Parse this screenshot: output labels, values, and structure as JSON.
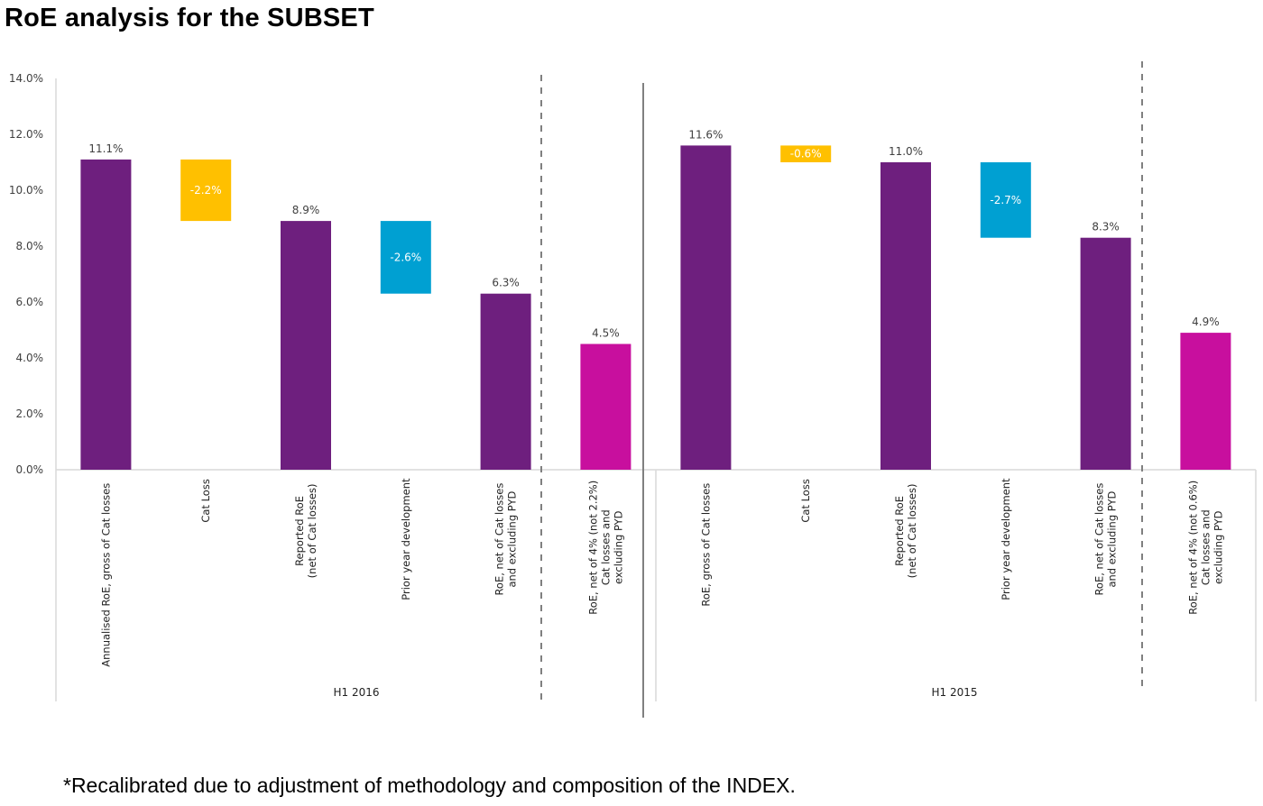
{
  "title": "RoE analysis for the SUBSET",
  "footnote": "*Recalibrated due to adjustment of methodology and composition of the INDEX.",
  "colors": {
    "total": "#6E1F7E",
    "cat_loss": "#FFC000",
    "pyd": "#00A0D2",
    "adjusted": "#C80F9E",
    "axis": "#D9D9D9",
    "tick_label": "#404040",
    "separator": "#808080"
  },
  "chart_data": {
    "type": "bar",
    "subtype": "waterfall",
    "title": "RoE analysis for the SUBSET",
    "xlabel": "",
    "ylabel": "",
    "ylim": [
      0,
      14
    ],
    "yticks": [
      "0.0%",
      "2.0%",
      "4.0%",
      "6.0%",
      "8.0%",
      "10.0%",
      "12.0%",
      "14.0%"
    ],
    "ytick_values": [
      0,
      2,
      4,
      6,
      8,
      10,
      12,
      14
    ],
    "grid": false,
    "legend": "none",
    "groups": [
      {
        "label": "H1 2016",
        "bars": [
          {
            "category": "Annualised RoE, gross of Cat losses",
            "kind": "total",
            "start": 0,
            "end": 11.1,
            "label": "11.1%"
          },
          {
            "category": "Cat Loss",
            "kind": "cat_loss",
            "start": 11.1,
            "end": 8.9,
            "label": "-2.2%"
          },
          {
            "category": "Reported RoE\n(net of Cat losses)",
            "kind": "total",
            "start": 0,
            "end": 8.9,
            "label": "8.9%"
          },
          {
            "category": "Prior year development",
            "kind": "pyd",
            "start": 8.9,
            "end": 6.3,
            "label": "-2.6%"
          },
          {
            "category": "RoE, net of Cat losses\nand excluding PYD",
            "kind": "total",
            "start": 0,
            "end": 6.3,
            "label": "6.3%"
          },
          {
            "category": "RoE, net of 4% (not 2.2%)\nCat losses and\nexcluding PYD",
            "kind": "adjusted",
            "start": 0,
            "end": 4.5,
            "label": "4.5%"
          }
        ]
      },
      {
        "label": "H1 2015",
        "bars": [
          {
            "category": "RoE, gross of Cat losses",
            "kind": "total",
            "start": 0,
            "end": 11.6,
            "label": "11.6%"
          },
          {
            "category": "Cat Loss",
            "kind": "cat_loss",
            "start": 11.6,
            "end": 11.0,
            "label": "-0.6%"
          },
          {
            "category": "Reported RoE\n(net of Cat losses)",
            "kind": "total",
            "start": 0,
            "end": 11.0,
            "label": "11.0%"
          },
          {
            "category": "Prior year development",
            "kind": "pyd",
            "start": 11.0,
            "end": 8.3,
            "label": "-2.7%"
          },
          {
            "category": "RoE, net of Cat losses\nand excluding PYD",
            "kind": "total",
            "start": 0,
            "end": 8.3,
            "label": "8.3%"
          },
          {
            "category": "RoE, net of 4% (not 0.6%)\nCat losses and\nexcluding PYD",
            "kind": "adjusted",
            "start": 0,
            "end": 4.9,
            "label": "4.9%"
          }
        ]
      }
    ]
  }
}
